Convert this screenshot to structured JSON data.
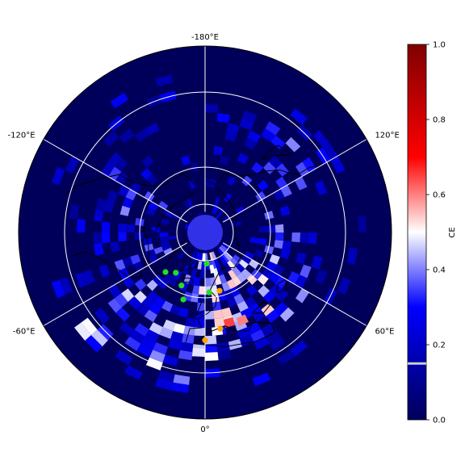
{
  "map": {
    "projection": "north-polar-stereographic",
    "longitude_labels": [
      {
        "text": "-180°E",
        "lon": -180
      },
      {
        "text": "120°E",
        "lon": 120
      },
      {
        "text": "-120°E",
        "lon": -120
      },
      {
        "text": "60°E",
        "lon": 60
      },
      {
        "text": "-60°E",
        "lon": -60
      },
      {
        "text": "0°",
        "lon": 0
      }
    ],
    "meridians_deg": [
      0,
      60,
      120,
      180,
      -120,
      -60
    ],
    "latitude_circles": 3,
    "background_color": "#00005a",
    "graticule_color": "#ffffff",
    "coastline_color": "#000000"
  },
  "markers": {
    "green": [
      {
        "lon": -45,
        "lat": 63
      },
      {
        "lon": -36,
        "lat": 66
      },
      {
        "lon": -24,
        "lat": 62
      },
      {
        "lon": -18,
        "lat": 56
      },
      {
        "lon": 3,
        "lat": 75
      },
      {
        "lon": 4,
        "lat": 61
      }
    ],
    "orange": [
      {
        "lon": 14,
        "lat": 61
      },
      {
        "lon": 9,
        "lat": 43
      },
      {
        "lon": 0,
        "lat": 38
      }
    ],
    "green_color": "#22dd22",
    "orange_color": "#ffa500"
  },
  "colorbar": {
    "label": "CE",
    "ticks": [
      "0.0",
      "0.2",
      "0.4",
      "0.6",
      "0.8",
      "1.0"
    ],
    "tick_values": [
      0,
      0.2,
      0.4,
      0.6,
      0.8,
      1.0
    ],
    "gradient": [
      "#00005a",
      "#0000ff",
      "#ffffff",
      "#ff0000",
      "#800000"
    ],
    "highlight_value": 0.15,
    "highlight_color": "#cccccc"
  }
}
